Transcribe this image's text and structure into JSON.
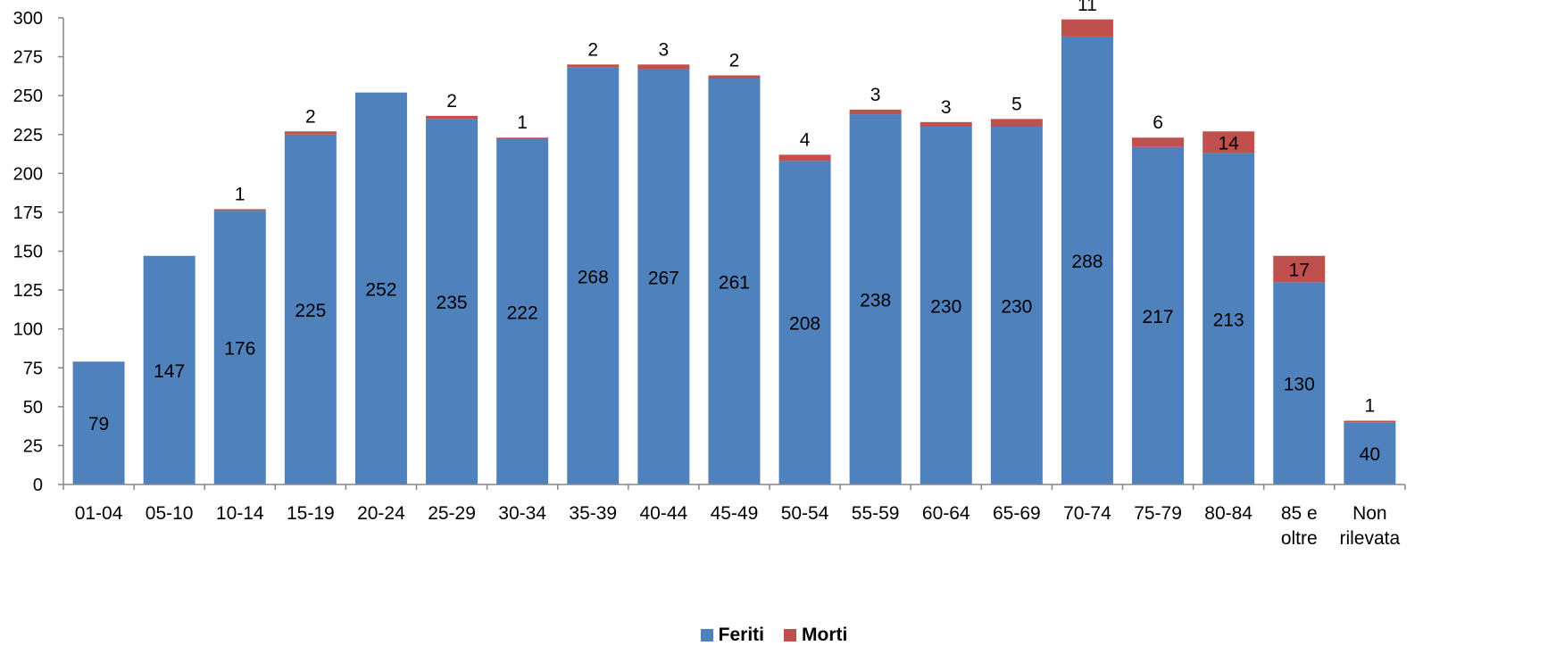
{
  "chart_data": {
    "type": "bar",
    "stacked": true,
    "categories": [
      "01-04",
      "05-10",
      "10-14",
      "15-19",
      "20-24",
      "25-29",
      "30-34",
      "35-39",
      "40-44",
      "45-49",
      "50-54",
      "55-59",
      "60-64",
      "65-69",
      "70-74",
      "75-79",
      "80-84",
      "85 e oltre",
      "Non rilevata"
    ],
    "category_lines": [
      [
        "01-04"
      ],
      [
        "05-10"
      ],
      [
        "10-14"
      ],
      [
        "15-19"
      ],
      [
        "20-24"
      ],
      [
        "25-29"
      ],
      [
        "30-34"
      ],
      [
        "35-39"
      ],
      [
        "40-44"
      ],
      [
        "45-49"
      ],
      [
        "50-54"
      ],
      [
        "55-59"
      ],
      [
        "60-64"
      ],
      [
        "65-69"
      ],
      [
        "70-74"
      ],
      [
        "75-79"
      ],
      [
        "80-84"
      ],
      [
        "85 e",
        "oltre"
      ],
      [
        "Non",
        "rilevata"
      ]
    ],
    "series": [
      {
        "name": "Feriti",
        "color": "#4F81BD",
        "values": [
          79,
          147,
          176,
          225,
          252,
          235,
          222,
          268,
          267,
          261,
          208,
          238,
          230,
          230,
          288,
          217,
          213,
          130,
          40
        ],
        "labels": [
          "79",
          "147",
          "176",
          "225",
          "252",
          "235",
          "222",
          "268",
          "267",
          "261",
          "208",
          "238",
          "230",
          "230",
          "288",
          "217",
          "213",
          "130",
          "40"
        ]
      },
      {
        "name": "Morti",
        "color": "#C0504D",
        "values": [
          0,
          0,
          1,
          2,
          0,
          2,
          1,
          2,
          3,
          2,
          4,
          3,
          3,
          5,
          11,
          6,
          14,
          17,
          1
        ],
        "labels": [
          "",
          "",
          "1",
          "2",
          "",
          "2",
          "1",
          "2",
          "3",
          "2",
          "4",
          "3",
          "3",
          "5",
          "11",
          "6",
          "14",
          "17",
          "1"
        ]
      }
    ],
    "ylim": [
      0,
      300
    ],
    "yticks": [
      "0",
      "25",
      "50",
      "75",
      "100",
      "125",
      "150",
      "175",
      "200",
      "225",
      "250",
      "275",
      "300"
    ],
    "grid": false,
    "legend": "bottom-center",
    "title": "",
    "xlabel": "",
    "ylabel": ""
  }
}
